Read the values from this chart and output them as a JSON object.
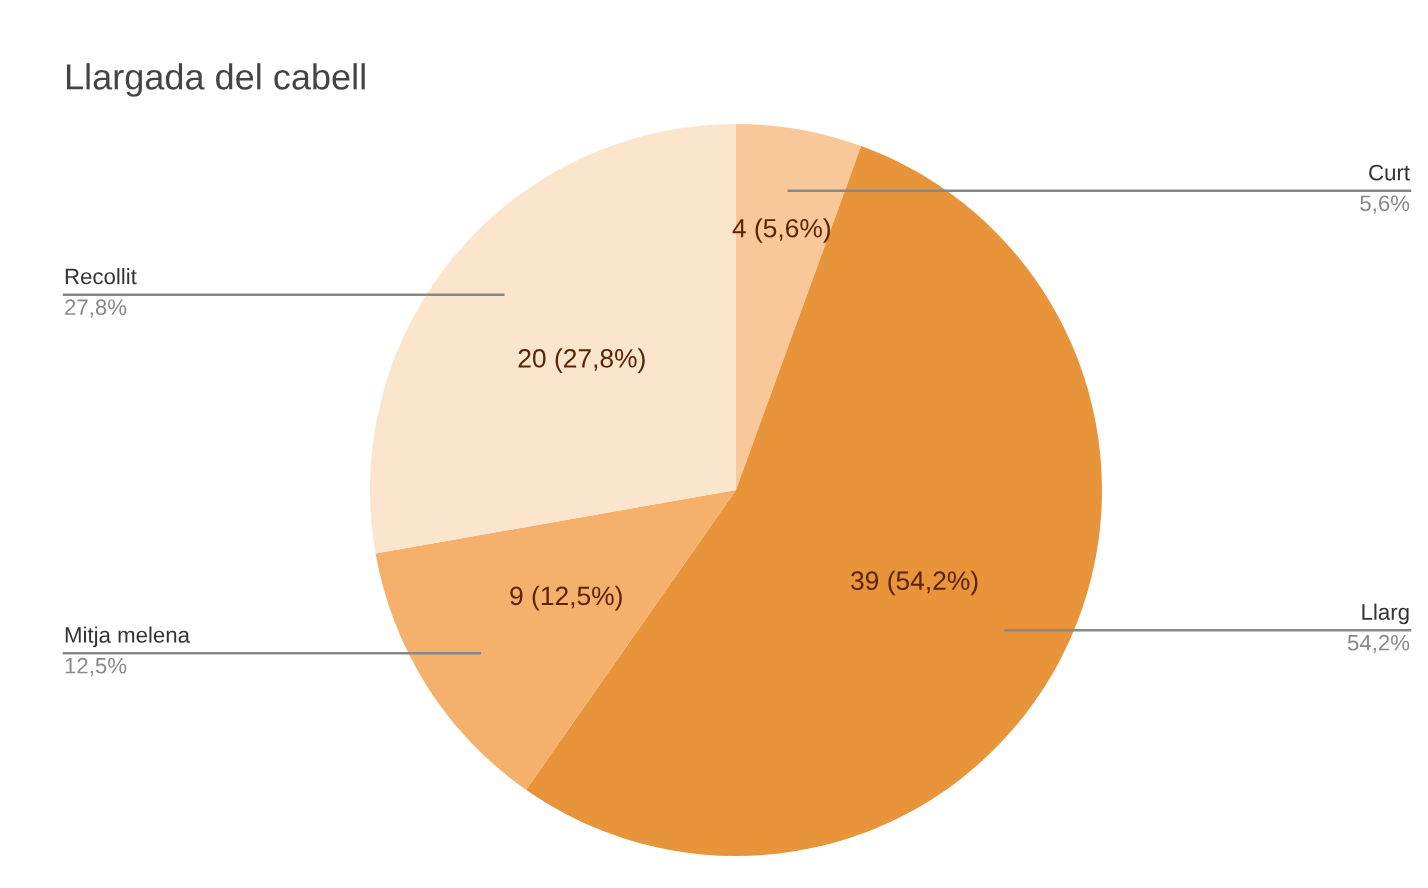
{
  "chart_data": {
    "type": "pie",
    "title": "Llargada del cabell",
    "categories": [
      "Curt",
      "Llarg",
      "Mitja melena",
      "Recollit"
    ],
    "values": [
      4,
      39,
      9,
      20
    ],
    "colors": [
      "#f9c89a",
      "#e8943a",
      "#f5b06c",
      "#fce5cd"
    ],
    "value_labels": [
      "4 (5,6%)",
      "39 (54,2%)",
      "9 (12,5%)",
      "20 (27,8%)"
    ],
    "annotations": [
      {
        "text": "5,6%",
        "x": "Curt"
      },
      {
        "text": "54,2%",
        "x": "Llarg"
      },
      {
        "text": "12,5%",
        "x": "Mitja melena"
      },
      {
        "text": "27,8%",
        "x": "Recollit"
      }
    ],
    "legend": false
  }
}
